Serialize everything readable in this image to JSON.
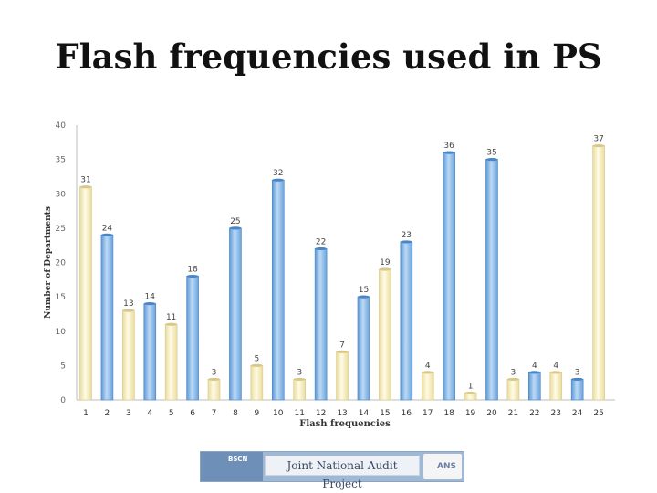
{
  "slide": {
    "title": "Flash frequencies used in PS"
  },
  "chart_data": {
    "type": "bar",
    "categories": [
      "1",
      "2",
      "3",
      "4",
      "5",
      "6",
      "7",
      "8",
      "9",
      "10",
      "11",
      "12",
      "13",
      "14",
      "15",
      "16",
      "17",
      "18",
      "19",
      "20",
      "21",
      "22",
      "23",
      "24",
      "25"
    ],
    "values": [
      31,
      24,
      13,
      14,
      11,
      18,
      3,
      25,
      5,
      32,
      3,
      22,
      7,
      15,
      19,
      23,
      4,
      36,
      1,
      35,
      3,
      4,
      4,
      3,
      37
    ],
    "bar_colors": [
      "yellow",
      "blue",
      "yellow",
      "blue",
      "yellow",
      "blue",
      "yellow",
      "blue",
      "yellow",
      "blue",
      "yellow",
      "blue",
      "yellow",
      "blue",
      "yellow",
      "blue",
      "yellow",
      "blue",
      "yellow",
      "blue",
      "yellow",
      "blue",
      "yellow",
      "blue",
      "yellow"
    ],
    "colors": {
      "blue": "#8fbde8",
      "yellow": "#f7efc0",
      "blue_edge": "#4a86c5",
      "yellow_edge": "#d8c98a"
    },
    "title": "",
    "xlabel": "Flash frequencies",
    "ylabel": "Number of Departments",
    "ylim": [
      0,
      40
    ],
    "yticks": [
      0,
      5,
      10,
      15,
      20,
      25,
      30,
      35,
      40
    ],
    "grid": false,
    "legend": "none"
  },
  "footer": {
    "logo_left": "BSCN",
    "center_text": "Joint National Audit Project",
    "logo_right": "ANS"
  }
}
